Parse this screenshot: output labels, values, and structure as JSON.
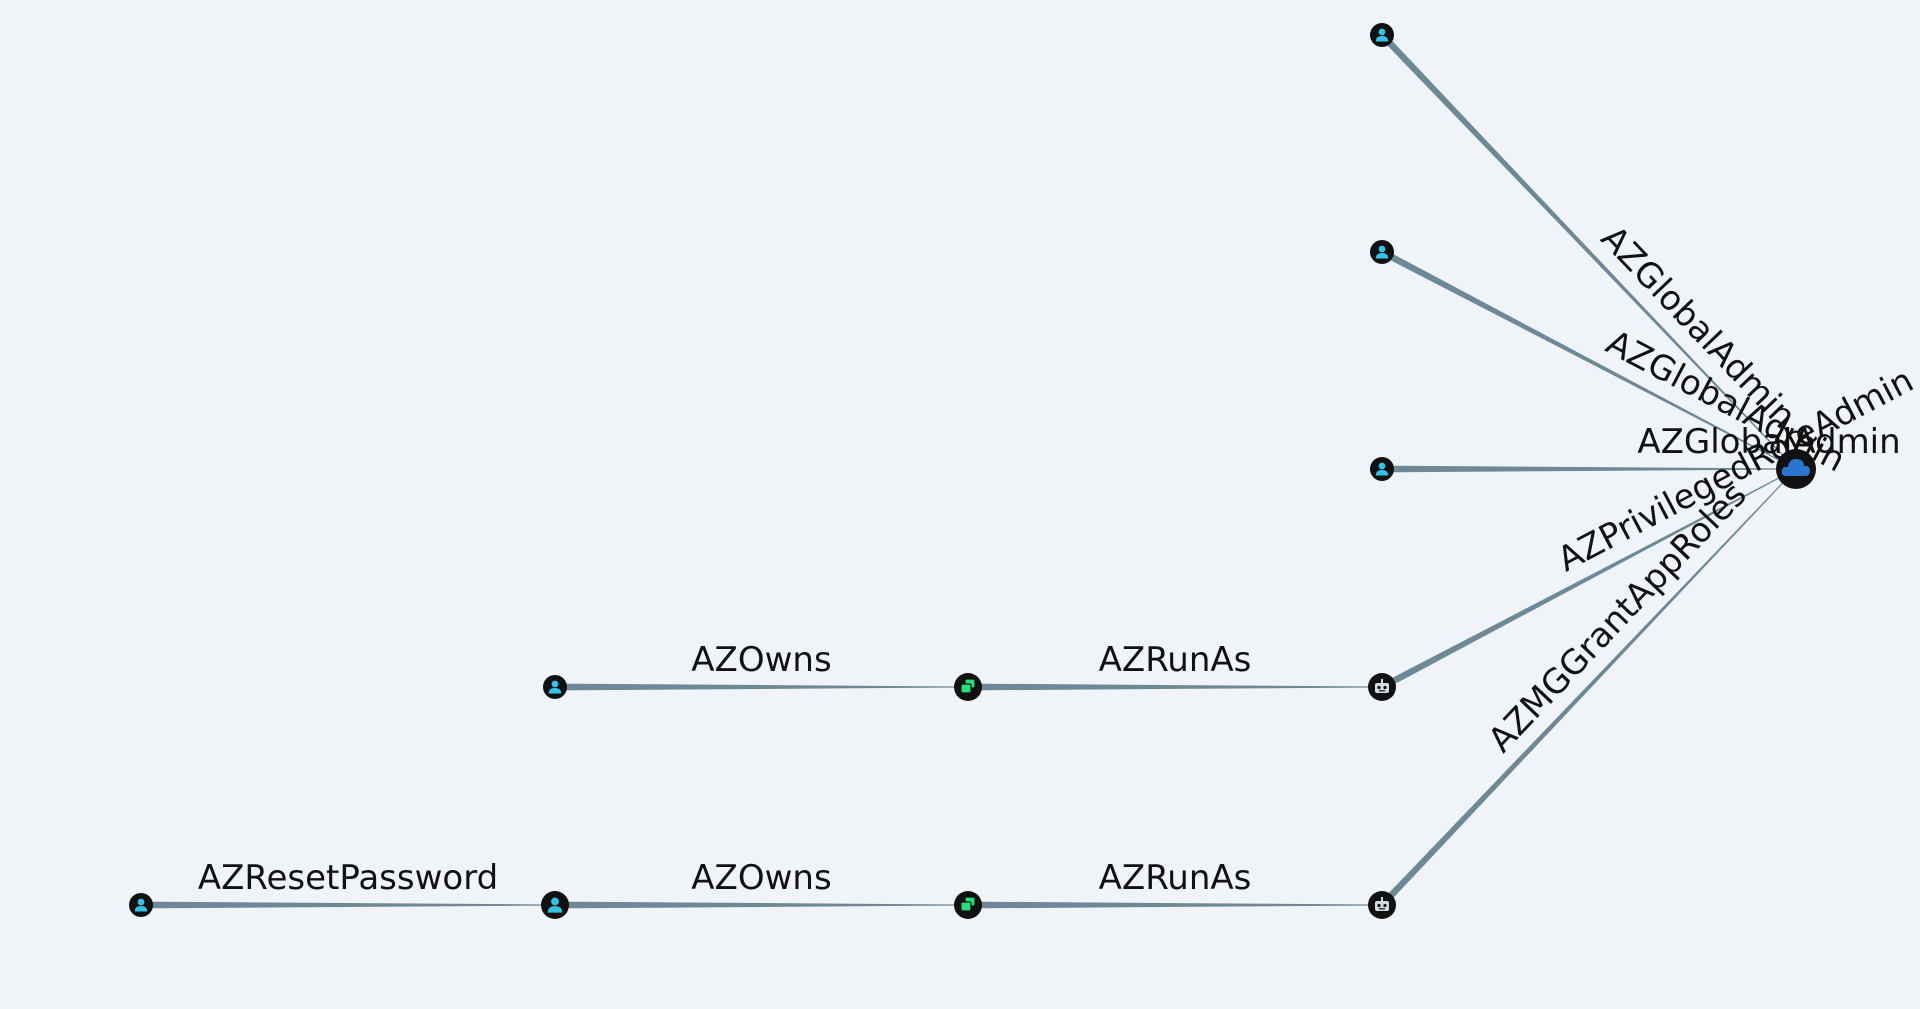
{
  "colors": {
    "background": "#f0f4f9",
    "edge": "#6f8896",
    "node_ring": "#111111",
    "user_icon": "#34c3e6",
    "app_icon": "#22e07a",
    "service_principal_icon": "#d4dbe0",
    "tenant_icon": "#2a75d0"
  },
  "nodes": [
    {
      "id": "u1",
      "kind": "user",
      "icon": "user-icon",
      "size": "small"
    },
    {
      "id": "u2",
      "kind": "user",
      "icon": "user-icon",
      "size": "small"
    },
    {
      "id": "u3",
      "kind": "user",
      "icon": "user-icon",
      "size": "small"
    },
    {
      "id": "u4",
      "kind": "user",
      "icon": "user-icon",
      "size": "small"
    },
    {
      "id": "u5",
      "kind": "user",
      "icon": "user-icon",
      "size": "small"
    },
    {
      "id": "u6",
      "kind": "user",
      "icon": "user-icon",
      "size": "medium"
    },
    {
      "id": "app1",
      "kind": "app",
      "icon": "app-icon",
      "size": "medium"
    },
    {
      "id": "app2",
      "kind": "app",
      "icon": "app-icon",
      "size": "medium"
    },
    {
      "id": "sp1",
      "kind": "service-principal",
      "icon": "robot-icon",
      "size": "medium"
    },
    {
      "id": "sp2",
      "kind": "service-principal",
      "icon": "robot-icon",
      "size": "medium"
    },
    {
      "id": "tenant",
      "kind": "tenant",
      "icon": "cloud-icon",
      "size": "large"
    }
  ],
  "edges": [
    {
      "id": "e1",
      "from": "u1",
      "to": "tenant",
      "label": "AZGlobalAdmin"
    },
    {
      "id": "e2",
      "from": "u2",
      "to": "tenant",
      "label": "AZGlobalAdmin"
    },
    {
      "id": "e3",
      "from": "u3",
      "to": "tenant",
      "label": "AZGlobalAdmin"
    },
    {
      "id": "e4",
      "from": "sp1",
      "to": "tenant",
      "label": "AZPrivilegedRoleAdmin"
    },
    {
      "id": "e5",
      "from": "sp2",
      "to": "tenant",
      "label": "AZMGGrantAppRoles"
    },
    {
      "id": "e6",
      "from": "u4",
      "to": "app1",
      "label": "AZOwns"
    },
    {
      "id": "e7",
      "from": "app1",
      "to": "sp1",
      "label": "AZRunAs"
    },
    {
      "id": "e8",
      "from": "u5",
      "to": "u6",
      "label": "AZResetPassword"
    },
    {
      "id": "e9",
      "from": "u6",
      "to": "app2",
      "label": "AZOwns"
    },
    {
      "id": "e10",
      "from": "app2",
      "to": "sp2",
      "label": "AZRunAs"
    }
  ]
}
